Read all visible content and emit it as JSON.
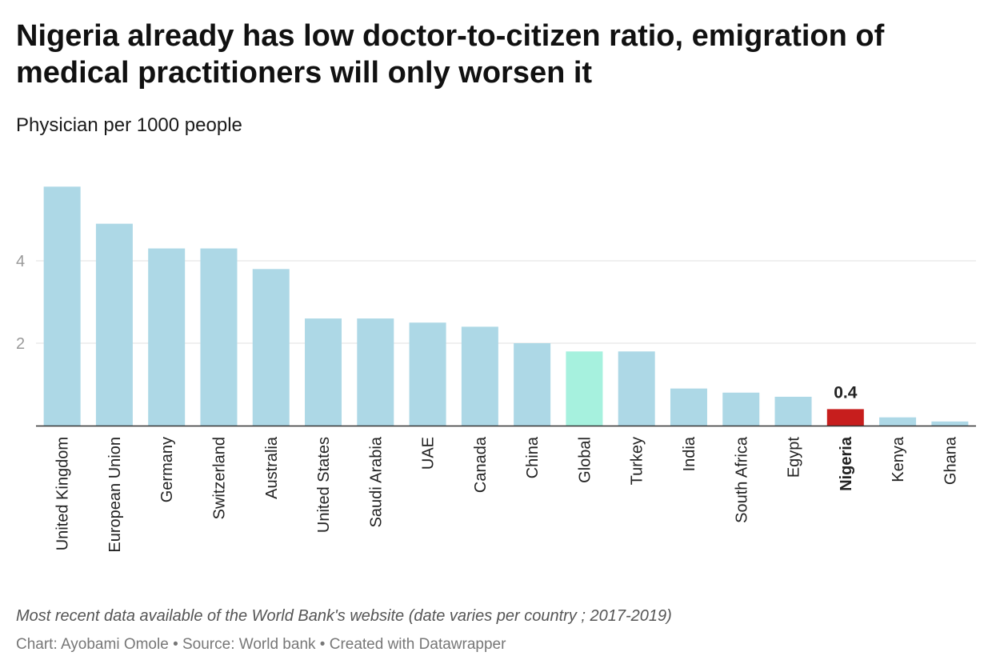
{
  "header": {
    "title": "Nigeria already has low doctor-to-citizen ratio, emigration of medical practitioners will only worsen it",
    "subtitle": "Physician per 1000 people"
  },
  "footer": {
    "note": "Most recent data available of the World Bank's website (date varies per country ; 2017-2019)",
    "credits": "Chart: Ayobami Omole • Source: World bank • Created with Datawrapper"
  },
  "colors": {
    "bar_default": "#add8e6",
    "bar_global": "#a6f1de",
    "bar_highlight": "#c71e1d",
    "gridline": "#e2e2e2",
    "baseline": "#333333",
    "tick_label": "#999999"
  },
  "chart_data": {
    "type": "bar",
    "title": "Nigeria already has low doctor-to-citizen ratio, emigration of medical practitioners will only worsen it",
    "subtitle": "Physician per 1000 people",
    "xlabel": "",
    "ylabel": "",
    "ylim": [
      0,
      6
    ],
    "yticks": [
      2,
      4
    ],
    "grid": true,
    "categories": [
      "United Kingdom",
      "European Union",
      "Germany",
      "Switzerland",
      "Australia",
      "United States",
      "Saudi Arabia",
      "UAE",
      "Canada",
      "China",
      "Global",
      "Turkey",
      "India",
      "South Africa",
      "Egypt",
      "Nigeria",
      "Kenya",
      "Ghana"
    ],
    "values": [
      5.8,
      4.9,
      4.3,
      4.3,
      3.8,
      2.6,
      2.6,
      2.5,
      2.4,
      2.0,
      1.8,
      1.8,
      0.9,
      0.8,
      0.7,
      0.4,
      0.2,
      0.1
    ],
    "highlight": "Nigeria",
    "reference": "Global",
    "data_labels": [
      {
        "category": "Nigeria",
        "text": "0.4"
      }
    ]
  }
}
